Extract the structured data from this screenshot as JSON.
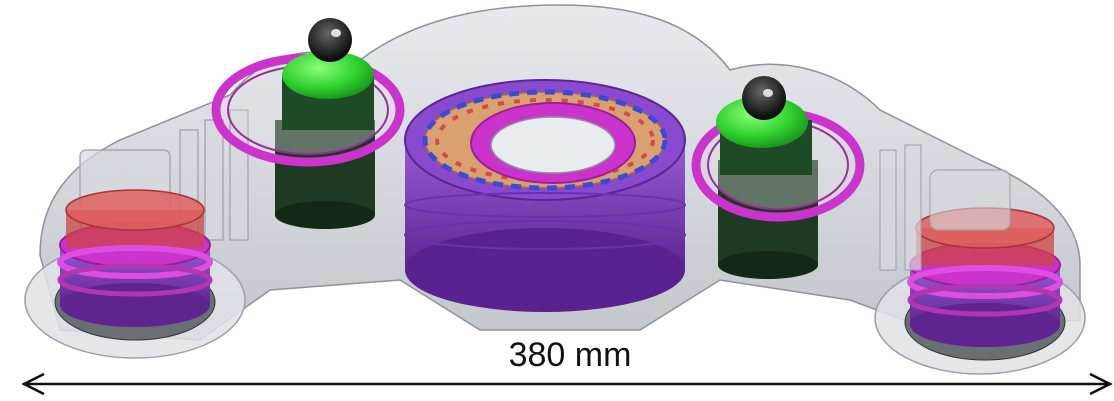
{
  "dimension": {
    "label": "380 mm"
  },
  "colors": {
    "housing": "#c9cdd2",
    "housing_stroke": "#8d939a",
    "purple": "#7d3bbf",
    "magenta": "#cc33cc",
    "green": "#33d633",
    "dark_green": "#1e3a22",
    "orange": "#d9a070",
    "red": "#d24a4a",
    "black": "#111111"
  }
}
